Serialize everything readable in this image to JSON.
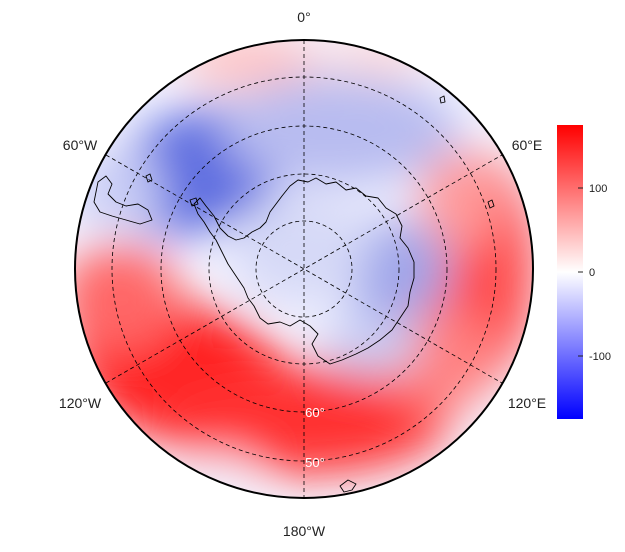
{
  "map": {
    "projection": "south-polar-stereographic",
    "field_range": [
      -175,
      175
    ],
    "longitude_labels": {
      "top": "0°",
      "upper_left": "60°W",
      "upper_right": "60°E",
      "lower_left": "120°W",
      "lower_right": "120°E",
      "bottom": "180°W"
    },
    "latitude_labels": {
      "inner": "60°",
      "outer": "50°"
    }
  },
  "colorbar": {
    "ticks": [
      "100",
      "0",
      "-100"
    ],
    "tick_values": [
      100,
      0,
      -100
    ],
    "colors": {
      "max": "#ff0000",
      "mid": "#ffffff",
      "min": "#0000ff"
    }
  }
}
